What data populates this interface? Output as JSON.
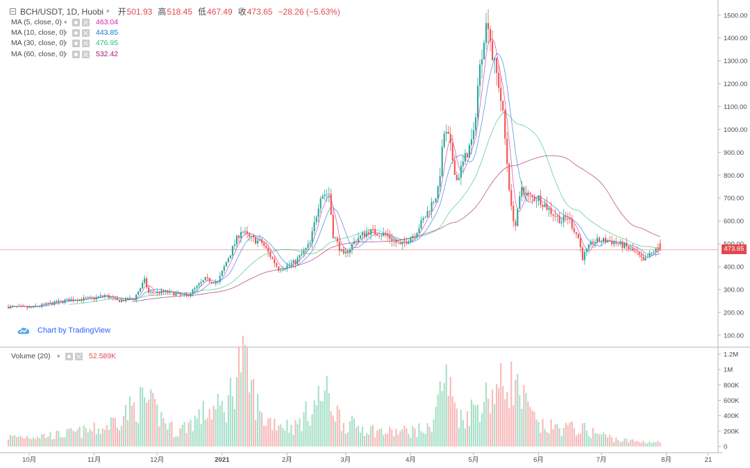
{
  "header": {
    "symbol": "BCH/USDT, 1D, Huobi",
    "open_label": "开",
    "open": "501.93",
    "high_label": "高",
    "high": "518.45",
    "low_label": "低",
    "low": "467.49",
    "close_label": "收",
    "close": "473.65",
    "change": "−28.26 (−5.63%)"
  },
  "indicators": [
    {
      "label": "MA (5, close, 0)",
      "value": "463.04",
      "color": "#d3229f"
    },
    {
      "label": "MA (10, close, 0)",
      "value": "443.85",
      "color": "#1e6fd9"
    },
    {
      "label": "MA (30, close, 0)",
      "value": "476.95",
      "color": "#27c27a"
    },
    {
      "label": "MA (60, close, 0)",
      "value": "532.42",
      "color": "#a0186c"
    }
  ],
  "volume_indicator": {
    "label": "Volume (20)",
    "value": "52.589K"
  },
  "watermark": "Chart by TradingView",
  "last_price_tag": "473.65",
  "colors": {
    "up": "#26a69a",
    "down": "#ef5350",
    "up_vol": "#a7e0c9",
    "down_vol": "#f7b9b8",
    "price_line": "#f3a9a9",
    "grid": "#e0e3eb"
  },
  "chart_data": {
    "type": "candlestick",
    "symbol": "BCH/USDT",
    "interval": "1D",
    "exchange": "Huobi",
    "price_axis": {
      "ticks": [
        "1500.00",
        "1400.00",
        "1300.00",
        "1200.00",
        "1100.00",
        "1000.00",
        "900.00",
        "800.00",
        "700.00",
        "600.00",
        "500.00",
        "400.00",
        "300.00",
        "200.00",
        "100.00"
      ],
      "values": [
        1500,
        1400,
        1300,
        1200,
        1100,
        1000,
        900,
        800,
        700,
        600,
        500,
        400,
        300,
        200,
        100
      ],
      "ylim": [
        60,
        1560
      ]
    },
    "volume_axis": {
      "ticks": [
        "1.2M",
        "1M",
        "800K",
        "600K",
        "400K",
        "200K",
        "0"
      ],
      "values": [
        1200000,
        1000000,
        800000,
        600000,
        400000,
        200000,
        0
      ],
      "ylim": [
        0,
        1200000
      ]
    },
    "x_axis": {
      "ticks": [
        "10月",
        "11月",
        "12月",
        "2021",
        "2月",
        "3月",
        "4月",
        "5月",
        "6月",
        "7月",
        "8月",
        "21"
      ],
      "positions": [
        "2020-10-01",
        "2020-11-01",
        "2020-12-01",
        "2021-01-01",
        "2021-02-01",
        "2021-03-01",
        "2021-04-01",
        "2021-05-01",
        "2021-06-01",
        "2021-07-01",
        "2021-08-01",
        "2021-08-21"
      ],
      "start": "2020-09-21",
      "end": "2021-08-25"
    },
    "anchors": [
      {
        "date": "2020-09-21",
        "close": 225
      },
      {
        "date": "2020-10-01",
        "close": 220
      },
      {
        "date": "2020-10-20",
        "close": 255
      },
      {
        "date": "2020-11-01",
        "close": 262
      },
      {
        "date": "2020-11-06",
        "close": 275
      },
      {
        "date": "2020-11-12",
        "close": 250
      },
      {
        "date": "2020-11-20",
        "close": 260
      },
      {
        "date": "2020-11-25",
        "close": 340
      },
      {
        "date": "2020-11-27",
        "close": 285
      },
      {
        "date": "2020-12-05",
        "close": 290
      },
      {
        "date": "2020-12-15",
        "close": 270
      },
      {
        "date": "2020-12-24",
        "close": 345
      },
      {
        "date": "2020-12-30",
        "close": 330
      },
      {
        "date": "2021-01-03",
        "close": 420
      },
      {
        "date": "2021-01-10",
        "close": 560
      },
      {
        "date": "2021-01-14",
        "close": 525
      },
      {
        "date": "2021-01-20",
        "close": 505
      },
      {
        "date": "2021-01-28",
        "close": 390
      },
      {
        "date": "2021-02-05",
        "close": 420
      },
      {
        "date": "2021-02-12",
        "close": 500
      },
      {
        "date": "2021-02-17",
        "close": 715
      },
      {
        "date": "2021-02-21",
        "close": 720
      },
      {
        "date": "2021-02-23",
        "close": 540
      },
      {
        "date": "2021-02-28",
        "close": 445
      },
      {
        "date": "2021-03-06",
        "close": 520
      },
      {
        "date": "2021-03-12",
        "close": 555
      },
      {
        "date": "2021-03-20",
        "close": 540
      },
      {
        "date": "2021-03-27",
        "close": 490
      },
      {
        "date": "2021-04-03",
        "close": 545
      },
      {
        "date": "2021-04-08",
        "close": 620
      },
      {
        "date": "2021-04-14",
        "close": 730
      },
      {
        "date": "2021-04-17",
        "close": 985
      },
      {
        "date": "2021-04-19",
        "close": 960
      },
      {
        "date": "2021-04-23",
        "close": 780
      },
      {
        "date": "2021-05-01",
        "close": 970
      },
      {
        "date": "2021-05-03",
        "close": 1190
      },
      {
        "date": "2021-05-06",
        "close": 1420
      },
      {
        "date": "2021-05-08",
        "close": 1480
      },
      {
        "date": "2021-05-10",
        "close": 1320
      },
      {
        "date": "2021-05-13",
        "close": 1200
      },
      {
        "date": "2021-05-15",
        "close": 1060
      },
      {
        "date": "2021-05-19",
        "close": 650
      },
      {
        "date": "2021-05-21",
        "close": 580
      },
      {
        "date": "2021-05-24",
        "close": 750
      },
      {
        "date": "2021-05-27",
        "close": 700
      },
      {
        "date": "2021-06-01",
        "close": 700
      },
      {
        "date": "2021-06-07",
        "close": 640
      },
      {
        "date": "2021-06-12",
        "close": 600
      },
      {
        "date": "2021-06-15",
        "close": 620
      },
      {
        "date": "2021-06-20",
        "close": 525
      },
      {
        "date": "2021-06-22",
        "close": 440
      },
      {
        "date": "2021-06-27",
        "close": 510
      },
      {
        "date": "2021-07-04",
        "close": 515
      },
      {
        "date": "2021-07-12",
        "close": 490
      },
      {
        "date": "2021-07-18",
        "close": 455
      },
      {
        "date": "2021-07-21",
        "close": 420
      },
      {
        "date": "2021-07-26",
        "close": 470
      },
      {
        "date": "2021-07-29",
        "close": 473.65
      }
    ],
    "last_candle": {
      "open": 501.93,
      "high": 518.45,
      "low": 467.49,
      "close": 473.65,
      "change": -28.26,
      "change_pct": -5.63
    },
    "moving_averages": [
      {
        "name": "MA (5, close, 0)",
        "period": 5,
        "last": 463.04,
        "color": "#d3229f"
      },
      {
        "name": "MA (10, close, 0)",
        "period": 10,
        "last": 443.85,
        "color": "#1e6fd9"
      },
      {
        "name": "MA (30, close, 0)",
        "period": 30,
        "last": 476.95,
        "color": "#27c27a"
      },
      {
        "name": "MA (60, close, 0)",
        "period": 60,
        "last": 532.42,
        "color": "#a0186c"
      }
    ],
    "volume_last": 52589,
    "volume_anchors": [
      {
        "date": "2020-09-21",
        "v": 120000
      },
      {
        "date": "2020-10-15",
        "v": 150000
      },
      {
        "date": "2020-11-05",
        "v": 230000
      },
      {
        "date": "2020-11-25",
        "v": 600000
      },
      {
        "date": "2020-12-10",
        "v": 180000
      },
      {
        "date": "2020-12-25",
        "v": 460000
      },
      {
        "date": "2021-01-03",
        "v": 500000
      },
      {
        "date": "2021-01-10",
        "v": 1150000
      },
      {
        "date": "2021-01-20",
        "v": 360000
      },
      {
        "date": "2021-02-05",
        "v": 250000
      },
      {
        "date": "2021-02-19",
        "v": 700000
      },
      {
        "date": "2021-02-28",
        "v": 300000
      },
      {
        "date": "2021-03-20",
        "v": 180000
      },
      {
        "date": "2021-04-10",
        "v": 220000
      },
      {
        "date": "2021-04-17",
        "v": 900000
      },
      {
        "date": "2021-04-25",
        "v": 360000
      },
      {
        "date": "2021-05-10",
        "v": 700000
      },
      {
        "date": "2021-05-19",
        "v": 850000
      },
      {
        "date": "2021-06-01",
        "v": 250000
      },
      {
        "date": "2021-06-21",
        "v": 230000
      },
      {
        "date": "2021-07-10",
        "v": 80000
      },
      {
        "date": "2021-07-29",
        "v": 52589
      }
    ],
    "grid": true,
    "legend_position": "top-left"
  }
}
